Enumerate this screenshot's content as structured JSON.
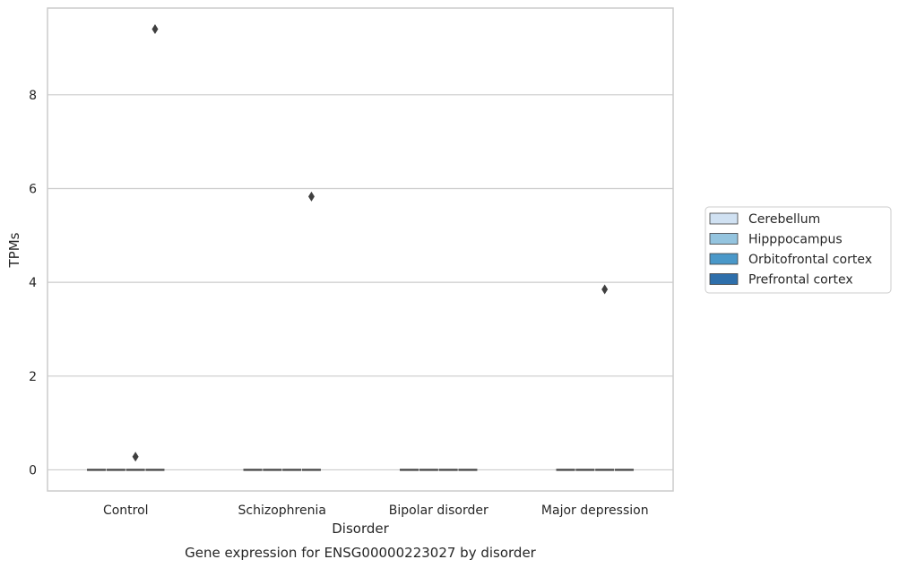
{
  "chart_data": {
    "type": "box",
    "title": "",
    "caption": "Gene expression for ENSG00000223027 by disorder",
    "xlabel": "Disorder",
    "ylabel": "TPMs",
    "categories": [
      "Control",
      "Schizophrenia",
      "Bipolar disorder",
      "Major depression"
    ],
    "ylim": [
      -0.45,
      9.85
    ],
    "yticks": [
      0,
      2,
      4,
      6,
      8
    ],
    "grid": "horizontal",
    "legend_position": "right",
    "series": [
      {
        "name": "Cerebellum",
        "color": "#d0e1f2",
        "median": [
          0,
          0,
          0,
          0
        ],
        "outliers": [
          [],
          [],
          [],
          []
        ]
      },
      {
        "name": "Hipppocampus",
        "color": "#94c4df",
        "median": [
          0,
          0,
          0,
          0
        ],
        "outliers": [
          [],
          [],
          [],
          []
        ]
      },
      {
        "name": "Orbitofrontal cortex",
        "color": "#4a98c9",
        "median": [
          0,
          0,
          0,
          0
        ],
        "outliers": [
          [
            0.28
          ],
          [],
          [],
          [
            3.85
          ]
        ]
      },
      {
        "name": "Prefrontal cortex",
        "color": "#2e6fab",
        "median": [
          0,
          0,
          0,
          0
        ],
        "outliers": [
          [
            9.4
          ],
          [
            5.83
          ],
          [],
          []
        ]
      }
    ]
  }
}
